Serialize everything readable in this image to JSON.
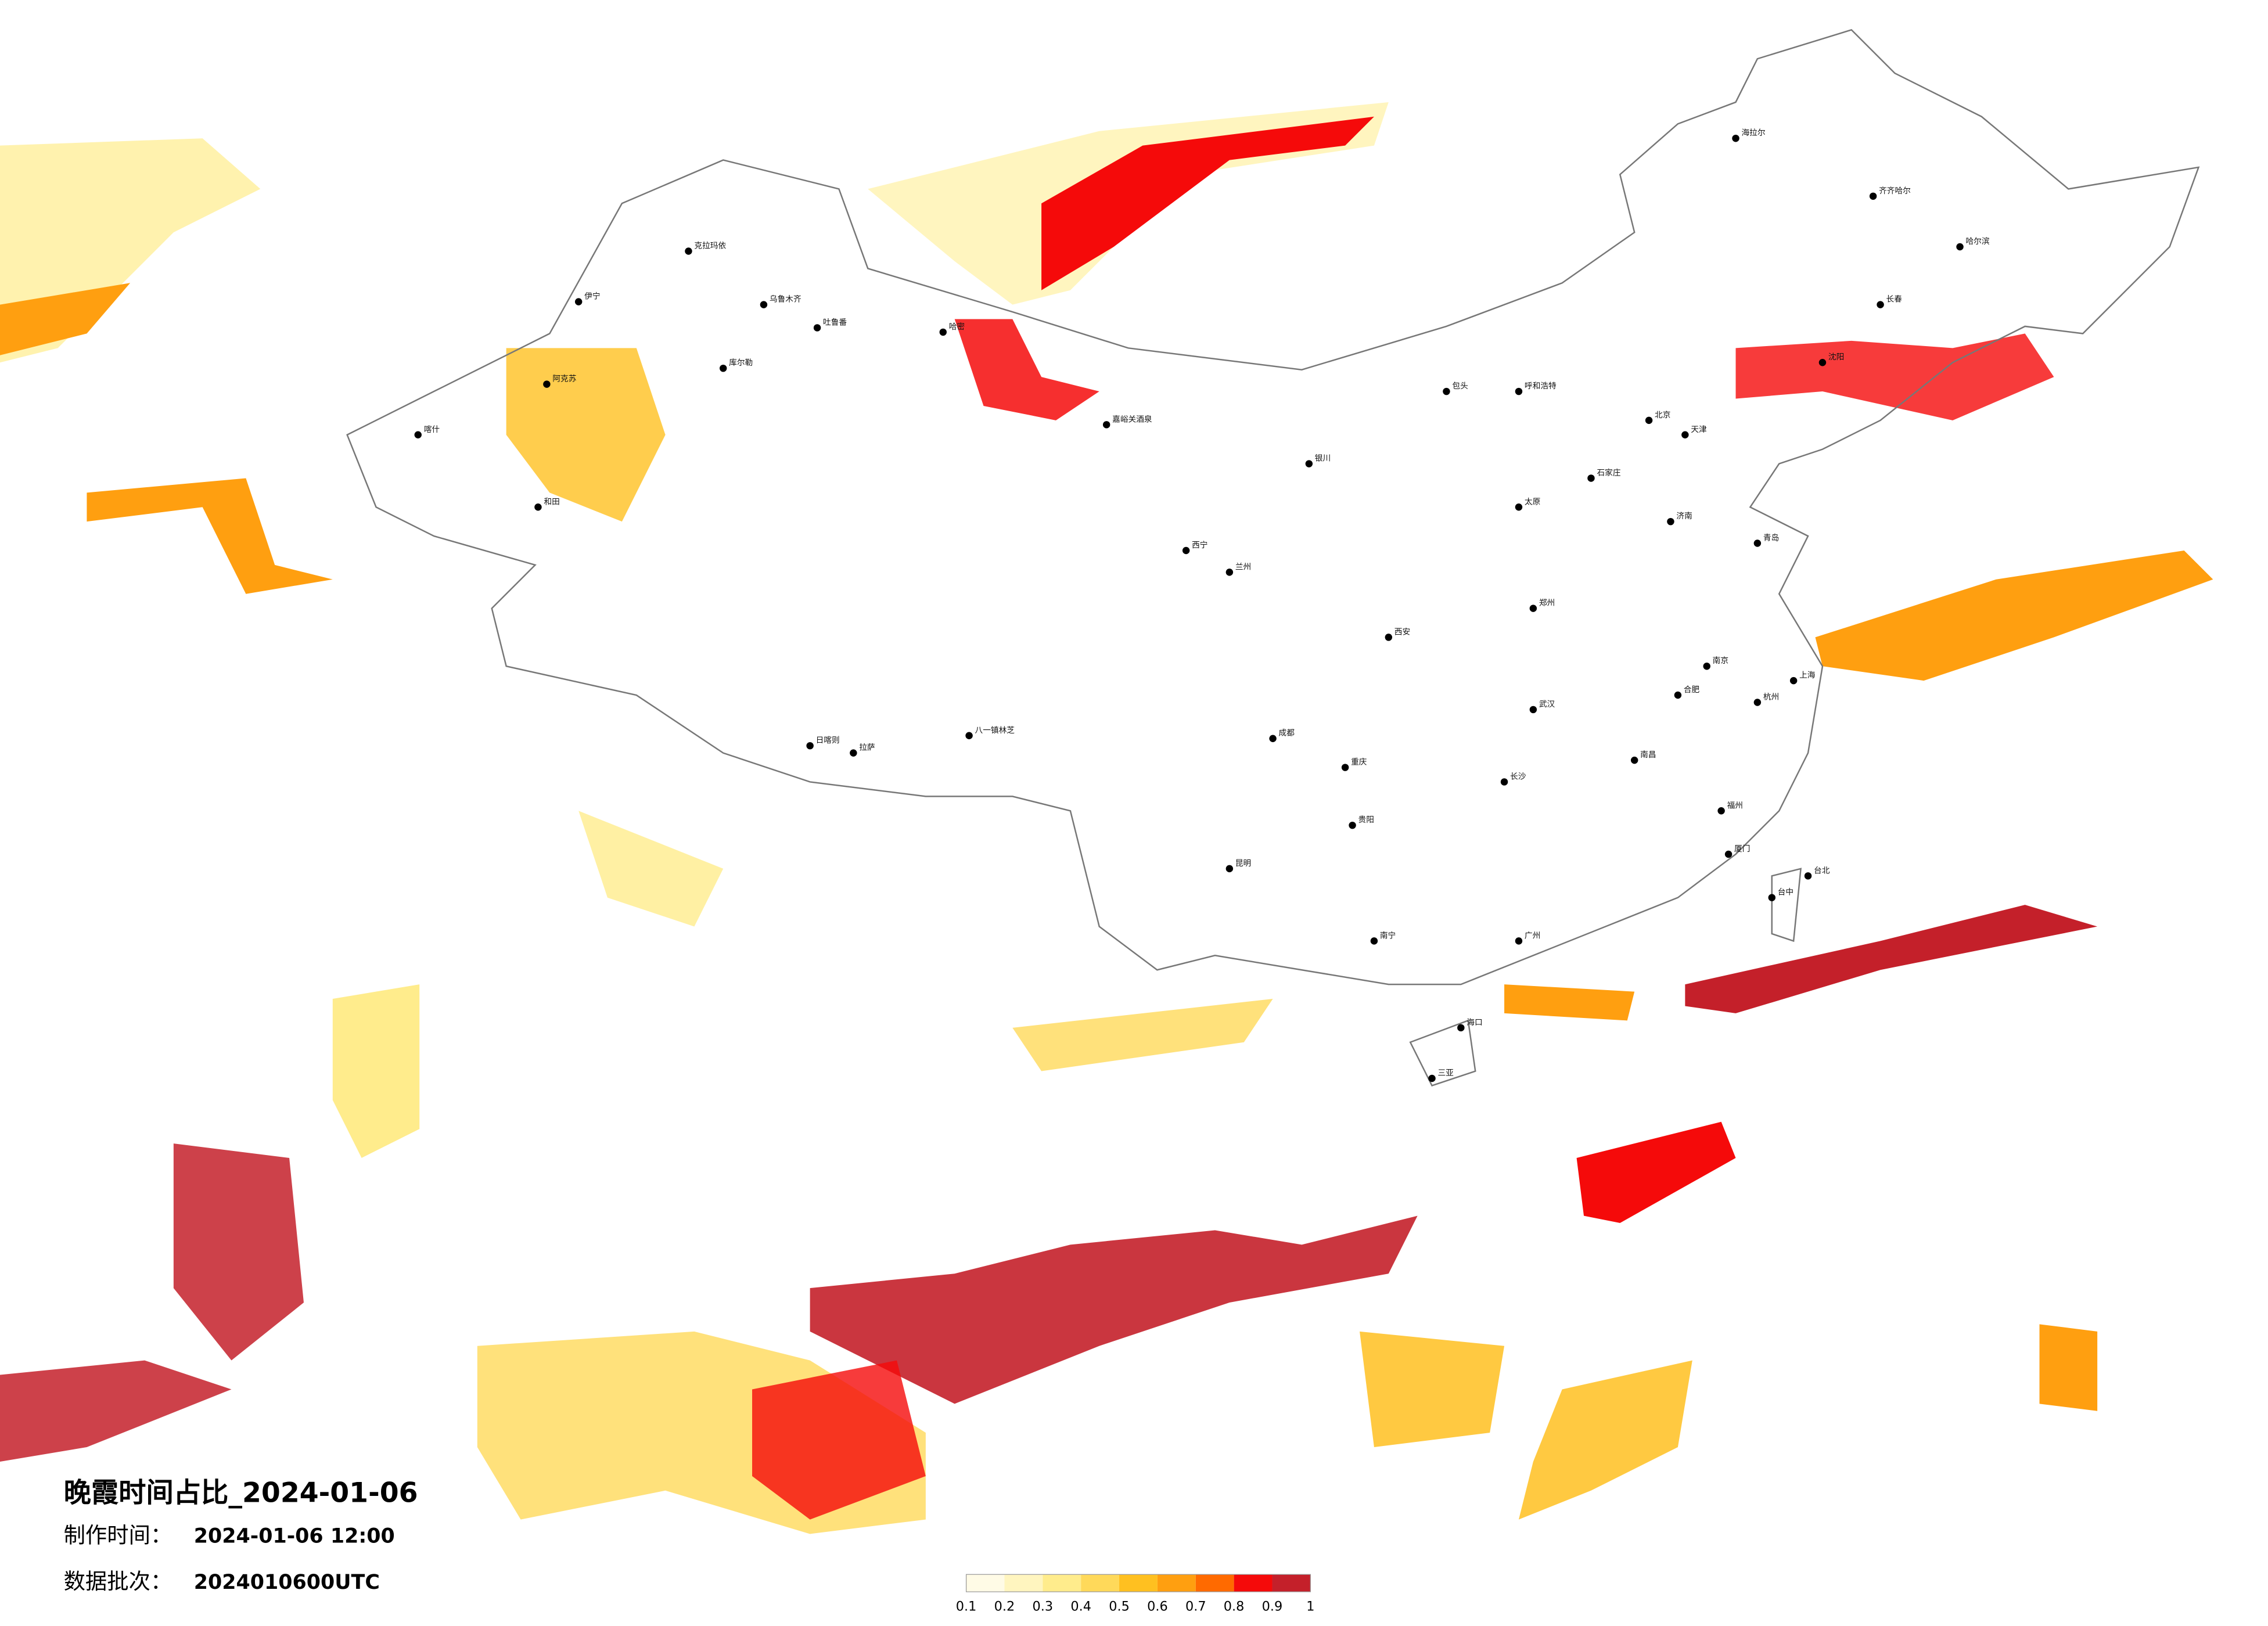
{
  "header": {
    "title": "晚霞时间占比_2024-01-06",
    "made_label": "制作时间：",
    "made_time": "2024-01-06 12:00",
    "batch_label": "数据批次：",
    "batch": "2024010600UTC"
  },
  "colorbar": {
    "ticks": [
      0.1,
      0.2,
      0.3,
      0.4,
      0.5,
      0.6,
      0.7,
      0.8,
      0.9,
      1
    ],
    "colors": [
      "#fffbe6",
      "#fff5bf",
      "#ffec8c",
      "#ffd95a",
      "#ffc020",
      "#ff9f10",
      "#ff6a00",
      "#f50a0a",
      "#c4202a"
    ]
  },
  "cities": [
    "克拉玛依",
    "乌鲁木齐",
    "吐鲁番",
    "伊宁",
    "库尔勒",
    "阿克苏",
    "喀什",
    "和田",
    "哈密",
    "嘉峪关酒泉",
    "西宁",
    "兰州",
    "拉萨",
    "日喀则",
    "八一镇林芝",
    "成都",
    "重庆",
    "昆明",
    "贵阳",
    "南宁",
    "广州",
    "海口",
    "三亚",
    "福州",
    "台北",
    "台中",
    "上海",
    "南京",
    "杭州",
    "武汉",
    "长沙",
    "郑州",
    "西安",
    "太原",
    "石家庄",
    "北京",
    "天津",
    "济南",
    "青岛",
    "沈阳",
    "长春",
    "哈尔滨",
    "呼和浩特",
    "包头",
    "银川",
    "齐齐哈尔",
    "海拉尔",
    "南昌",
    "合肥",
    "厦门"
  ]
}
